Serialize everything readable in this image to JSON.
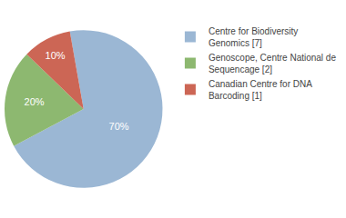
{
  "chart_data": {
    "type": "pie",
    "categories": [
      "Centre for Biodiversity\nGenomics [7]",
      "Genoscope, Centre National de\nSequencage [2]",
      "Canadian Centre for DNA\nBarcoding [1]"
    ],
    "values": [
      70,
      20,
      10
    ],
    "value_labels": [
      "70%",
      "20%",
      "10%"
    ],
    "data_labels": true,
    "colors": [
      "#9bb7d4",
      "#8db870",
      "#cc6655"
    ],
    "legend": "right"
  }
}
